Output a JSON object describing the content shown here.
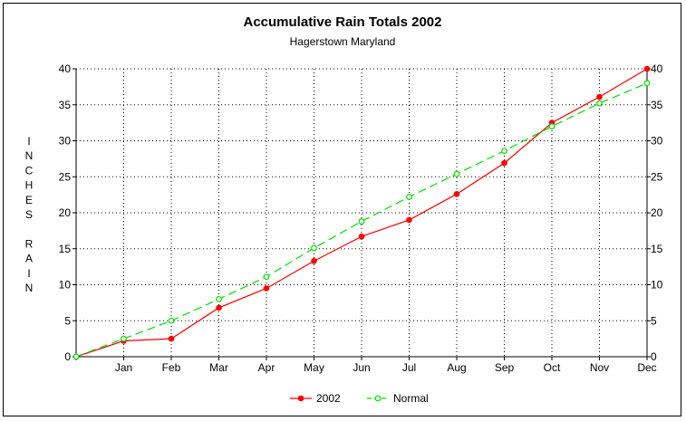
{
  "chart_data": {
    "type": "line",
    "title": "Accumulative Rain Totals 2002",
    "subtitle": "Hagerstown Maryland",
    "ylabel": "INCHES RAIN",
    "xlabel": "",
    "categories": [
      "",
      "Jan",
      "Feb",
      "Mar",
      "Apr",
      "May",
      "Jun",
      "Jul",
      "Aug",
      "Sep",
      "Oct",
      "Nov",
      "Dec"
    ],
    "ylim": [
      0,
      40
    ],
    "yticks": [
      0,
      5,
      10,
      15,
      20,
      25,
      30,
      35,
      40
    ],
    "grid": true,
    "legend_position": "bottom",
    "series": [
      {
        "name": "2002",
        "color": "#ff0000",
        "line_style": "solid",
        "values": [
          0,
          2.2,
          2.5,
          6.8,
          9.5,
          13.3,
          16.7,
          19.0,
          22.6,
          26.9,
          32.5,
          36.1,
          40.0
        ]
      },
      {
        "name": "Normal",
        "color": "#00dd00",
        "line_style": "dashed",
        "values": [
          0,
          2.5,
          5.0,
          8.0,
          11.1,
          15.1,
          18.8,
          22.2,
          25.4,
          28.6,
          32.0,
          35.2,
          38.0
        ]
      }
    ]
  }
}
